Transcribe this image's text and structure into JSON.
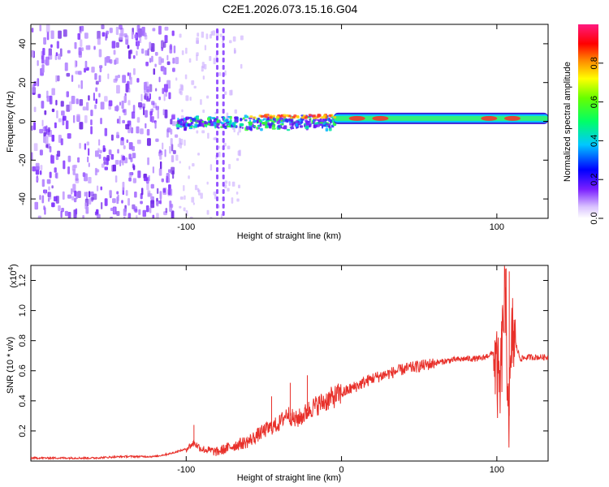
{
  "title": "C2E1.2026.073.15.16.G04",
  "chart_data": [
    {
      "type": "heatmap",
      "name": "spectrogram",
      "xlabel": "Height of straight line (km)",
      "ylabel": "Frequency (Hz)",
      "xlim": [
        -200,
        133
      ],
      "ylim": [
        -50,
        50
      ],
      "xticks": [
        -100,
        0,
        100
      ],
      "xtick_labels": [
        "-100",
        "",
        "100"
      ],
      "yticks": [
        -40,
        -20,
        0,
        20,
        40
      ],
      "ytick_labels": [
        "-40",
        "-20",
        "0",
        "20",
        "40"
      ],
      "colorbar": {
        "label": "Normalized spectral amplitude",
        "range": [
          0.0,
          1.0
        ],
        "ticks": [
          0.0,
          0.2,
          0.4,
          0.6,
          0.8
        ],
        "tick_labels": [
          "0.0",
          "0.2",
          "0.4",
          "0.6",
          "0.8"
        ]
      },
      "regions": [
        {
          "x": [
            -200,
            -107
          ],
          "description_value": "broadband noise",
          "amplitude": 0.15
        },
        {
          "x": [
            -107,
            -5
          ],
          "center_freq": 0,
          "amplitude": 0.5
        },
        {
          "x": [
            -5,
            133
          ],
          "center_freq": 1.5,
          "amplitude": 0.55
        }
      ]
    },
    {
      "type": "line",
      "name": "snr",
      "xlabel": "Height of straight line (km)",
      "ylabel": "SNR (10 * v/v)",
      "y_multiplier_label": "(x10",
      "y_multiplier_exp": "4",
      "y_multiplier_close": ")",
      "xlim": [
        -200,
        133
      ],
      "ylim": [
        0,
        1.3
      ],
      "xticks": [
        -100,
        0,
        100
      ],
      "xtick_labels": [
        "-100",
        "0",
        "100"
      ],
      "yticks": [
        0.2,
        0.4,
        0.6,
        0.8,
        1.0,
        1.2
      ],
      "ytick_labels": [
        "0.2",
        "0.4",
        "0.6",
        "0.8",
        "1.0",
        "1.2"
      ],
      "color": "#e8302a",
      "series": [
        {
          "name": "SNR",
          "x": [
            -200,
            -180,
            -160,
            -140,
            -120,
            -110,
            -100,
            -95,
            -90,
            -80,
            -70,
            -60,
            -50,
            -40,
            -35,
            -30,
            -25,
            -20,
            -10,
            0,
            10,
            20,
            30,
            40,
            50,
            60,
            70,
            80,
            90,
            98,
            102,
            105,
            108,
            110,
            115,
            120,
            133
          ],
          "y": [
            0.02,
            0.02,
            0.02,
            0.03,
            0.03,
            0.05,
            0.08,
            0.12,
            0.08,
            0.06,
            0.1,
            0.13,
            0.2,
            0.25,
            0.32,
            0.27,
            0.3,
            0.35,
            0.4,
            0.45,
            0.5,
            0.55,
            0.58,
            0.61,
            0.63,
            0.65,
            0.67,
            0.68,
            0.68,
            0.72,
            0.45,
            1.1,
            0.3,
            0.85,
            0.68,
            0.69,
            0.69
          ]
        }
      ],
      "spikes": [
        {
          "x": -95,
          "y": 0.24
        },
        {
          "x": -45,
          "y": 0.43
        },
        {
          "x": -33,
          "y": 0.52
        },
        {
          "x": -22,
          "y": 0.57
        },
        {
          "x": 103,
          "y": 0.88
        },
        {
          "x": 106,
          "y": 1.28
        },
        {
          "x": 108,
          "y": 1.26
        }
      ]
    }
  ]
}
